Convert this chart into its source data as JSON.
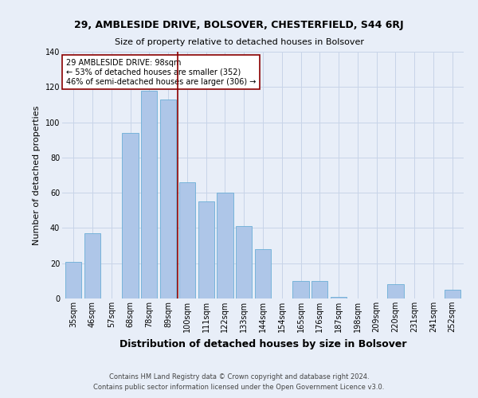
{
  "title1": "29, AMBLESIDE DRIVE, BOLSOVER, CHESTERFIELD, S44 6RJ",
  "title2": "Size of property relative to detached houses in Bolsover",
  "xlabel": "Distribution of detached houses by size in Bolsover",
  "ylabel": "Number of detached properties",
  "categories": [
    "35sqm",
    "46sqm",
    "57sqm",
    "68sqm",
    "78sqm",
    "89sqm",
    "100sqm",
    "111sqm",
    "122sqm",
    "133sqm",
    "144sqm",
    "154sqm",
    "165sqm",
    "176sqm",
    "187sqm",
    "198sqm",
    "209sqm",
    "220sqm",
    "231sqm",
    "241sqm",
    "252sqm"
  ],
  "values": [
    21,
    37,
    0,
    94,
    118,
    113,
    66,
    55,
    60,
    41,
    28,
    0,
    10,
    10,
    1,
    0,
    0,
    8,
    0,
    0,
    5
  ],
  "bar_color": "#aec6e8",
  "bar_edge_color": "#6baed6",
  "vline_x_idx": 5.5,
  "vline_color": "#8b0000",
  "annotation_text": "29 AMBLESIDE DRIVE: 98sqm\n← 53% of detached houses are smaller (352)\n46% of semi-detached houses are larger (306) →",
  "annotation_box_color": "#ffffff",
  "annotation_box_edge_color": "#8b0000",
  "footer1": "Contains HM Land Registry data © Crown copyright and database right 2024.",
  "footer2": "Contains public sector information licensed under the Open Government Licence v3.0.",
  "ylim": [
    0,
    140
  ],
  "yticks": [
    0,
    20,
    40,
    60,
    80,
    100,
    120,
    140
  ],
  "grid_color": "#c8d4e8",
  "bg_color": "#e8eef8",
  "figsize": [
    6.0,
    5.0
  ],
  "dpi": 100,
  "title1_fontsize": 9,
  "title2_fontsize": 8,
  "xlabel_fontsize": 9,
  "ylabel_fontsize": 8,
  "tick_fontsize": 7,
  "annotation_fontsize": 7,
  "footer_fontsize": 6
}
